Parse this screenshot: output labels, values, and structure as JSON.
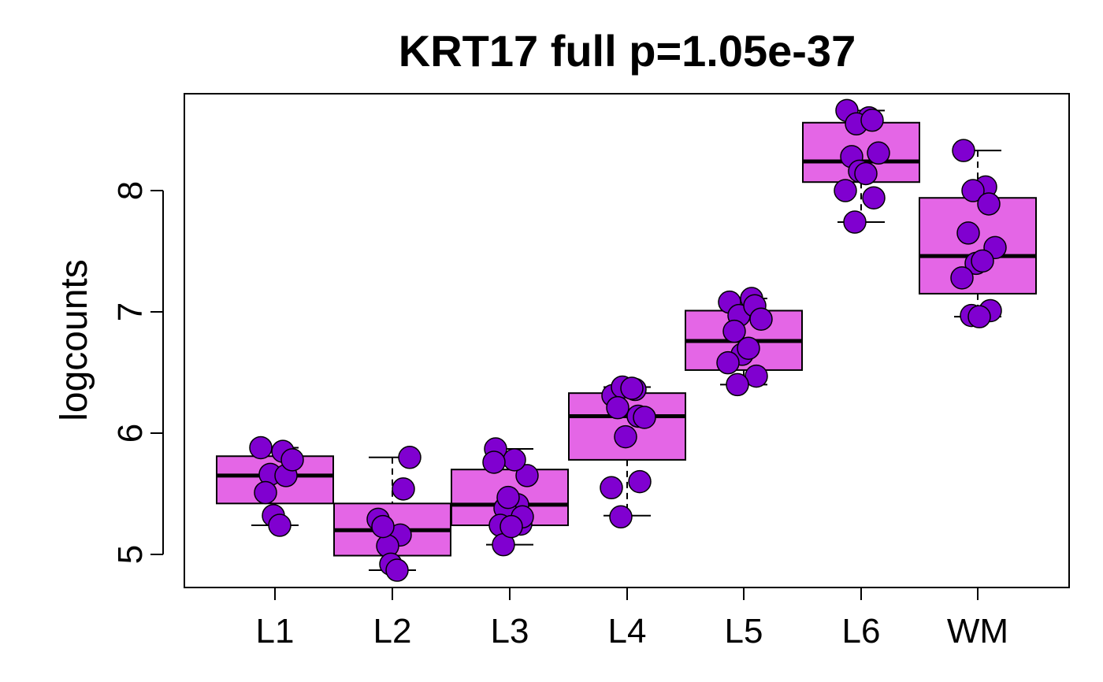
{
  "chart_data": {
    "type": "box",
    "title": "KRT17 full p=1.05e-37",
    "xlabel": "",
    "ylabel": "logcounts",
    "categories": [
      "L1",
      "L2",
      "L3",
      "L4",
      "L5",
      "L6",
      "WM"
    ],
    "yticks": [
      5,
      6,
      7,
      8
    ],
    "ytick_labels": [
      "5",
      "6",
      "7",
      "8"
    ],
    "ylim": [
      4.73,
      8.8
    ],
    "grid": false,
    "legend": "none",
    "colors": {
      "box_fill": "#E466E6",
      "point_fill": "#8000D0",
      "stroke": "#000000"
    },
    "boxes": [
      {
        "category": "L1",
        "whisker_low": 5.24,
        "q1": 5.42,
        "median": 5.65,
        "q3": 5.81,
        "whisker_high": 5.88
      },
      {
        "category": "L2",
        "whisker_low": 4.87,
        "q1": 4.99,
        "median": 5.2,
        "q3": 5.42,
        "whisker_high": 5.8
      },
      {
        "category": "L3",
        "whisker_low": 5.08,
        "q1": 5.24,
        "median": 5.41,
        "q3": 5.7,
        "whisker_high": 5.87
      },
      {
        "category": "L4",
        "whisker_low": 5.32,
        "q1": 5.78,
        "median": 6.14,
        "q3": 6.33,
        "whisker_high": 6.38
      },
      {
        "category": "L5",
        "whisker_low": 6.4,
        "q1": 6.52,
        "median": 6.76,
        "q3": 7.01,
        "whisker_high": 7.11
      },
      {
        "category": "L6",
        "whisker_low": 7.74,
        "q1": 8.07,
        "median": 8.24,
        "q3": 8.56,
        "whisker_high": 8.66
      },
      {
        "category": "WM",
        "whisker_low": 6.96,
        "q1": 7.15,
        "median": 7.46,
        "q3": 7.94,
        "whisker_high": 8.33
      }
    ],
    "points": [
      {
        "category": "L1",
        "values": [
          5.88,
          5.85,
          5.66,
          5.65,
          5.51,
          5.78,
          5.32,
          5.24
        ]
      },
      {
        "category": "L2",
        "values": [
          5.29,
          5.16,
          5.07,
          5.54,
          5.23,
          5.8,
          4.92,
          4.87
        ]
      },
      {
        "category": "L3",
        "values": [
          5.87,
          5.41,
          5.38,
          5.25,
          5.24,
          5.65,
          5.47,
          5.78,
          5.76,
          5.31,
          5.08,
          5.23
        ]
      },
      {
        "category": "L4",
        "values": [
          6.31,
          6.36,
          6.38,
          6.14,
          6.21,
          6.13,
          5.97,
          6.37,
          5.55,
          5.6,
          5.31
        ]
      },
      {
        "category": "L5",
        "values": [
          7.08,
          7.11,
          6.97,
          7.05,
          6.84,
          6.94,
          6.65,
          6.7,
          6.58,
          6.47,
          6.4
        ]
      },
      {
        "category": "L6",
        "values": [
          8.66,
          8.6,
          8.55,
          8.58,
          8.28,
          8.31,
          8.16,
          8.14,
          8.0,
          7.94,
          7.74
        ]
      },
      {
        "category": "WM",
        "values": [
          8.33,
          8.03,
          8.0,
          7.89,
          7.65,
          7.53,
          7.4,
          7.42,
          7.28,
          7.01,
          6.97,
          6.96
        ]
      }
    ]
  }
}
